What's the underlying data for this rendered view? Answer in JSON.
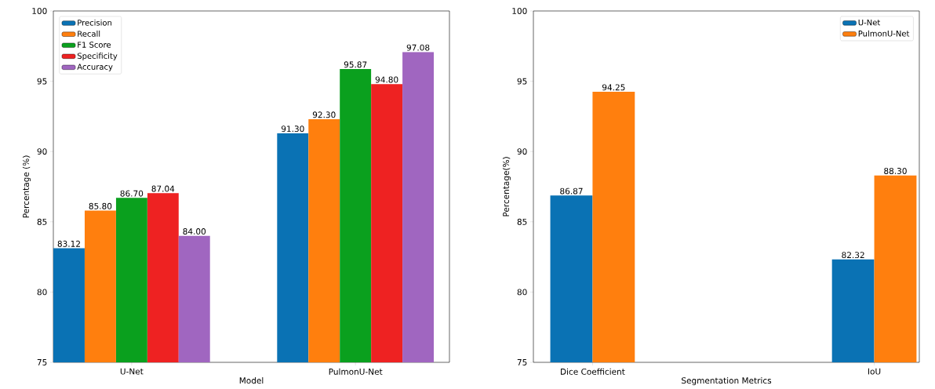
{
  "chart_data": [
    {
      "type": "bar",
      "xlabel": "Model",
      "ylabel": "Percentage (%)",
      "categories": [
        "U-Net",
        "PulmonU-Net"
      ],
      "ylim": [
        75,
        100
      ],
      "yticks": [
        75,
        80,
        85,
        90,
        95,
        100
      ],
      "legend": "top left",
      "series": [
        {
          "name": "Precision",
          "color": "#0a72b4",
          "values": [
            83.12,
            91.3
          ],
          "value_labels": [
            "83.12",
            "91.30"
          ]
        },
        {
          "name": "Recall",
          "color": "#ff7f0e",
          "values": [
            85.8,
            92.3
          ],
          "value_labels": [
            "85.80",
            "92.30"
          ]
        },
        {
          "name": "F1 Score",
          "color": "#0aa01e",
          "values": [
            86.7,
            95.87
          ],
          "value_labels": [
            "86.70",
            "95.87"
          ]
        },
        {
          "name": "Specificity",
          "color": "#ee2222",
          "values": [
            87.04,
            94.8
          ],
          "value_labels": [
            "87.04",
            "94.80"
          ]
        },
        {
          "name": "Accuracy",
          "color": "#a066c0",
          "values": [
            84.0,
            97.08
          ],
          "value_labels": [
            "84.00",
            "97.08"
          ]
        }
      ]
    },
    {
      "type": "bar",
      "xlabel": "Segmentation Metrics",
      "ylabel": "Percentage(%)",
      "categories": [
        "Dice Coefficient",
        "IoU"
      ],
      "ylim": [
        75,
        100
      ],
      "yticks": [
        75,
        80,
        85,
        90,
        95,
        100
      ],
      "legend": "top right",
      "series": [
        {
          "name": "U-Net",
          "color": "#0a72b4",
          "values": [
            86.87,
            82.32
          ],
          "value_labels": [
            "86.87",
            "82.32"
          ]
        },
        {
          "name": "PulmonU-Net",
          "color": "#ff7f0e",
          "values": [
            94.25,
            88.3
          ],
          "value_labels": [
            "94.25",
            "88.30"
          ]
        }
      ]
    }
  ]
}
